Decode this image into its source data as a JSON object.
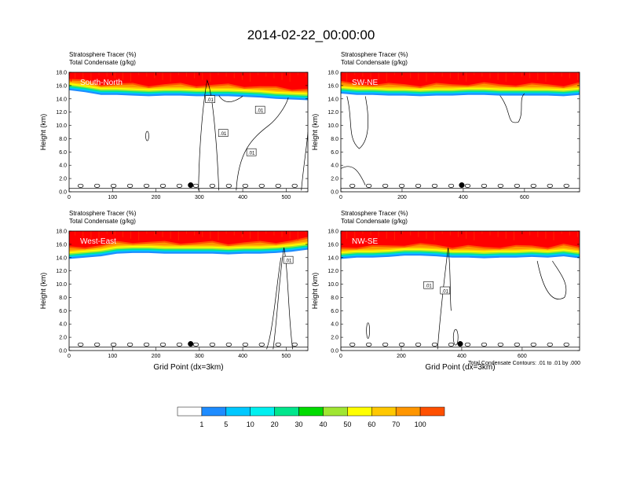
{
  "page_title": "2014-02-22_00:00:00",
  "footnote": "Total Condensate Contours: .01 to .01 by .000",
  "palette": [
    "#ffffff",
    "#1e8cff",
    "#00c8ff",
    "#00f0f0",
    "#00e68c",
    "#00dc00",
    "#a0e632",
    "#ffff00",
    "#ffc800",
    "#ff9600",
    "#ff5000",
    "#ff0000"
  ],
  "colorbar": {
    "labels": [
      "1",
      "5",
      "10",
      "20",
      "30",
      "40",
      "50",
      "60",
      "70",
      "100"
    ]
  },
  "chart_data": [
    {
      "type": "contour",
      "panel_label": "South-North",
      "field_titles": [
        "Stratosphere Tracer   (%)",
        "Total Condensate   (g/kg)"
      ],
      "ylabel": "Height (km)",
      "xlabel": "",
      "xlim": [
        0,
        550
      ],
      "ylim": [
        0,
        18
      ],
      "xticks": [
        0,
        100,
        200,
        300,
        400,
        500
      ],
      "yticks": [
        "0.0",
        "2.0",
        "4.0",
        "6.0",
        "8.0",
        "10.0",
        "12.0",
        "14.0",
        "16.0",
        "18.0"
      ],
      "tracer_base": [
        15.3,
        15.0,
        14.6,
        14.6,
        14.5,
        14.4,
        14.5,
        14.5,
        14.4,
        14.4,
        14.4,
        14.3,
        14.2,
        14.0,
        13.9,
        13.8
      ],
      "contour_labels": [
        {
          "text": ".01",
          "x": 325,
          "y": 13.9
        },
        {
          "text": ".01",
          "x": 355,
          "y": 8.8
        },
        {
          "text": ".01",
          "x": 440,
          "y": 12.3
        },
        {
          "text": ".01",
          "x": 420,
          "y": 5.9
        }
      ],
      "marker": {
        "x": 280,
        "y": 1.0
      }
    },
    {
      "type": "contour",
      "panel_label": "SW-NE",
      "field_titles": [
        "Stratosphere Tracer   (%)",
        "Total Condensate   (g/kg)"
      ],
      "ylabel": "Height (km)",
      "xlabel": "",
      "xlim": [
        0,
        780
      ],
      "ylim": [
        0,
        18
      ],
      "xticks": [
        0,
        200,
        400,
        600
      ],
      "yticks": [
        "0.0",
        "2.0",
        "4.0",
        "6.0",
        "8.0",
        "10.0",
        "12.0",
        "14.0",
        "16.0",
        "18.0"
      ],
      "tracer_base": [
        14.8,
        14.6,
        14.6,
        14.5,
        14.5,
        14.4,
        14.5,
        14.5,
        14.6,
        14.6,
        14.5,
        14.5,
        14.5,
        14.5,
        14.4,
        14.6
      ],
      "contour_labels": [],
      "marker": {
        "x": 395,
        "y": 1.0
      }
    },
    {
      "type": "contour",
      "panel_label": "West-East",
      "field_titles": [
        "Stratosphere Tracer   (%)",
        "Total Condensate   (g/kg)"
      ],
      "ylabel": "Height (km)",
      "xlabel": "Grid Point (dx=3km)",
      "xlim": [
        0,
        550
      ],
      "ylim": [
        0,
        18
      ],
      "xticks": [
        0,
        100,
        200,
        300,
        400,
        500
      ],
      "yticks": [
        "0.0",
        "2.0",
        "4.0",
        "6.0",
        "8.0",
        "10.0",
        "12.0",
        "14.0",
        "16.0",
        "18.0"
      ],
      "tracer_base": [
        13.8,
        14.0,
        14.2,
        14.6,
        14.7,
        14.7,
        14.6,
        14.6,
        14.6,
        14.6,
        14.5,
        14.6,
        14.6,
        14.7,
        14.9,
        15.2
      ],
      "contour_labels": [
        {
          "text": ".01",
          "x": 505,
          "y": 13.6
        }
      ],
      "marker": {
        "x": 280,
        "y": 1.0
      }
    },
    {
      "type": "contour",
      "panel_label": "NW-SE",
      "field_titles": [
        "Stratosphere Tracer   (%)",
        "Total Condensate   (g/kg)"
      ],
      "ylabel": "Height (km)",
      "xlabel": "Grid Point (dx=3km)",
      "xlim": [
        0,
        790
      ],
      "ylim": [
        0,
        18
      ],
      "xticks": [
        0,
        200,
        400,
        600
      ],
      "yticks": [
        "0.0",
        "2.0",
        "4.0",
        "6.0",
        "8.0",
        "10.0",
        "12.0",
        "14.0",
        "16.0",
        "18.0"
      ],
      "tracer_base": [
        13.8,
        14.0,
        14.0,
        14.1,
        14.3,
        14.3,
        14.2,
        14.0,
        14.0,
        13.9,
        14.0,
        14.0,
        14.1,
        14.0,
        14.2,
        13.9
      ],
      "contour_labels": [
        {
          "text": ".01",
          "x": 290,
          "y": 9.8
        },
        {
          "text": ".01",
          "x": 345,
          "y": 9.0
        }
      ],
      "marker": {
        "x": 395,
        "y": 1.0
      }
    }
  ]
}
